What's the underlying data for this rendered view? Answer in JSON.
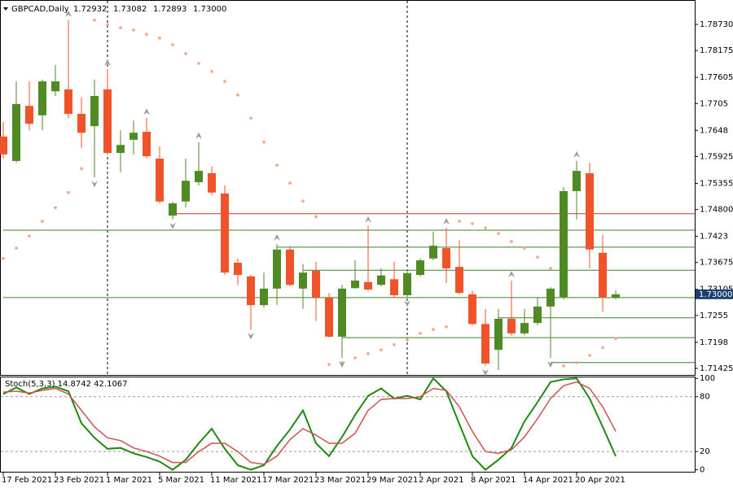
{
  "chart_data": {
    "type": "candlestick",
    "title": "GBPCAD,Daily",
    "last_labels": [
      "1.72932",
      "1.73082",
      "1.72893",
      "1.73000"
    ],
    "categories": [
      "17 Feb 2021",
      null,
      null,
      null,
      "23 Feb 2021",
      null,
      null,
      null,
      "1 Mar 2021",
      null,
      null,
      null,
      "5 Mar 2021",
      null,
      null,
      null,
      "11 Mar 2021",
      null,
      null,
      null,
      "17 Mar 2021",
      null,
      null,
      null,
      "23 Mar 2021",
      null,
      null,
      null,
      "29 Mar 2021",
      null,
      null,
      null,
      "2 Apr 2021",
      null,
      null,
      null,
      "8 Apr 2021",
      null,
      null,
      null,
      "14 Apr 2021",
      null,
      null,
      null,
      "20 Apr 2021",
      null,
      null,
      null
    ],
    "ohlc": [
      [
        1.7635,
        1.7666,
        1.7588,
        1.7597
      ],
      [
        1.7583,
        1.7752,
        1.7579,
        1.7704
      ],
      [
        1.77,
        1.7752,
        1.7648,
        1.7662
      ],
      [
        1.768,
        1.7756,
        1.7648,
        1.7752
      ],
      [
        1.7731,
        1.7787,
        1.7721,
        1.7752
      ],
      [
        1.7735,
        1.7882,
        1.7674,
        1.7683
      ],
      [
        1.7683,
        1.7718,
        1.7611,
        1.7643
      ],
      [
        1.7657,
        1.7756,
        1.7548,
        1.7721
      ],
      [
        1.7735,
        1.7778,
        1.7597,
        1.76
      ],
      [
        1.76,
        1.7648,
        1.7559,
        1.7617
      ],
      [
        1.7628,
        1.7669,
        1.7597,
        1.7643
      ],
      [
        1.7645,
        1.7674,
        1.7588,
        1.7593
      ],
      [
        1.7588,
        1.7614,
        1.7493,
        1.7497
      ],
      [
        1.7467,
        1.7497,
        1.7459,
        1.7493
      ],
      [
        1.7497,
        1.7588,
        1.7484,
        1.7541
      ],
      [
        1.7538,
        1.7623,
        1.7531,
        1.7562
      ],
      [
        1.7557,
        1.7571,
        1.751,
        1.7516
      ],
      [
        1.7514,
        1.7531,
        1.7341,
        1.7346
      ],
      [
        1.7367,
        1.7376,
        1.732,
        1.7341
      ],
      [
        1.7338,
        1.7341,
        1.7225,
        1.7277
      ],
      [
        1.7277,
        1.7346,
        1.7272,
        1.7312
      ],
      [
        1.7312,
        1.7407,
        1.7277,
        1.7395
      ],
      [
        1.7395,
        1.7402,
        1.7317,
        1.732
      ],
      [
        1.7312,
        1.7364,
        1.7269,
        1.7346
      ],
      [
        1.735,
        1.7369,
        1.7243,
        1.7293
      ],
      [
        1.7293,
        1.7303,
        1.7208,
        1.721
      ],
      [
        1.721,
        1.732,
        1.7165,
        1.7312
      ],
      [
        1.7313,
        1.7372,
        1.7312,
        1.7329
      ],
      [
        1.7326,
        1.7445,
        1.7307,
        1.731
      ],
      [
        1.732,
        1.7355,
        1.7317,
        1.734
      ],
      [
        1.7332,
        1.7369,
        1.7294,
        1.7298
      ],
      [
        1.7298,
        1.735,
        1.7294,
        1.7345
      ],
      [
        1.7341,
        1.7376,
        1.7338,
        1.7372
      ],
      [
        1.7376,
        1.7433,
        1.7372,
        1.7403
      ],
      [
        1.7398,
        1.7441,
        1.7324,
        1.7355
      ],
      [
        1.7358,
        1.7415,
        1.73,
        1.7303
      ],
      [
        1.73,
        1.7307,
        1.7234,
        1.7237
      ],
      [
        1.7237,
        1.7269,
        1.7148,
        1.7153
      ],
      [
        1.7182,
        1.7269,
        1.7139,
        1.7248
      ],
      [
        1.7248,
        1.7329,
        1.7212,
        1.7217
      ],
      [
        1.7217,
        1.7269,
        1.7213,
        1.7239
      ],
      [
        1.7239,
        1.7294,
        1.7234,
        1.7274
      ],
      [
        1.7274,
        1.7315,
        1.7165,
        1.7312
      ],
      [
        1.7294,
        1.7528,
        1.7289,
        1.7519
      ],
      [
        1.7519,
        1.7583,
        1.7459,
        1.7562
      ],
      [
        1.7557,
        1.7579,
        1.7355,
        1.7395
      ],
      [
        1.7388,
        1.7427,
        1.7263,
        1.7294
      ],
      [
        1.72932,
        1.73082,
        1.72893,
        1.73
      ]
    ],
    "bull_color": "#4f8a25",
    "bear_color": "#f0522a",
    "sar": {
      "color": "#f4a582",
      "values": [
        1.7376,
        1.7398,
        1.7424,
        1.7455,
        1.7484,
        1.7516,
        1.7567,
        1.7882,
        1.7873,
        1.7866,
        1.7861,
        1.7852,
        1.7844,
        1.783,
        1.7811,
        1.779,
        1.7773,
        1.7752,
        1.7723,
        1.7674,
        1.7623,
        1.7574,
        1.7536,
        1.7498,
        1.7465,
        1.7151,
        1.7155,
        1.7165,
        1.7174,
        1.7182,
        1.7193,
        1.7203,
        1.7217,
        1.7225,
        1.7231,
        1.7455,
        1.745,
        1.7441,
        1.7429,
        1.7412,
        1.7398,
        1.7379,
        1.7355,
        1.7148,
        1.7155,
        1.717,
        1.7187,
        1.7206
      ]
    },
    "fractals_up": [
      5,
      8,
      11,
      15,
      21,
      28,
      34,
      39,
      44
    ],
    "fractals_down": [
      7,
      13,
      19,
      26,
      31,
      37,
      42
    ],
    "levels": [
      {
        "price": 1.7471,
        "color": "#c0392b",
        "from_index": 13
      },
      {
        "price": 1.7436,
        "color": "#3f7f2a",
        "from_index": 0
      },
      {
        "price": 1.74,
        "color": "#3f7f2a",
        "from_index": 21
      },
      {
        "price": 1.7351,
        "color": "#3f7f2a",
        "from_index": 23
      },
      {
        "price": 1.7293,
        "color": "#3f7f2a",
        "from_index": 0
      },
      {
        "price": 1.725,
        "color": "#3f7f2a",
        "from_index": 38
      },
      {
        "price": 1.7208,
        "color": "#3f7f2a",
        "from_index": 26
      },
      {
        "price": 1.7155,
        "color": "#3f7f2a",
        "from_index": 42
      }
    ],
    "ylim": [
      1.71287,
      1.79248
    ],
    "yticks": [
      {
        "value": 1.7873,
        "label": "1.78730"
      },
      1.78175,
      1.77605,
      1.7705,
      1.7648,
      1.75925,
      1.75355,
      {
        "value": 1.748,
        "label": "1.74800"
      },
      1.7423,
      1.73675,
      1.73105,
      1.7255,
      1.7198,
      1.71425
    ],
    "stochastic": {
      "title": "Stoch(5,3,3) 14.8742 42.1067",
      "ylim": [
        -3,
        102
      ],
      "yticks": [
        100,
        80,
        20,
        0
      ],
      "levels": [
        80,
        20
      ],
      "series": [
        {
          "name": "Main",
          "color": "#1f8a12",
          "values": [
            83,
            90,
            83,
            89,
            91,
            86,
            51,
            35,
            23,
            24,
            18,
            14,
            9,
            0,
            11,
            29,
            45,
            23,
            5,
            0,
            5,
            26,
            44,
            65,
            29,
            15,
            36,
            60,
            81,
            89,
            78,
            81,
            77,
            100,
            86,
            50,
            15,
            0,
            11,
            24,
            53,
            74,
            96,
            99,
            100,
            78,
            47,
            14.8742
          ]
        },
        {
          "name": "Signal",
          "color": "#d05050",
          "values": [
            85,
            86,
            84,
            87,
            89,
            83,
            65,
            47,
            35,
            32,
            24,
            20,
            15,
            8,
            8,
            20,
            29,
            29,
            20,
            8,
            6,
            15,
            33,
            45,
            38,
            29,
            29,
            40,
            65,
            77,
            78,
            78,
            80,
            89,
            87,
            69,
            42,
            20,
            18,
            22,
            36,
            56,
            78,
            92,
            96,
            89,
            69,
            42.1067
          ]
        }
      ]
    }
  }
}
